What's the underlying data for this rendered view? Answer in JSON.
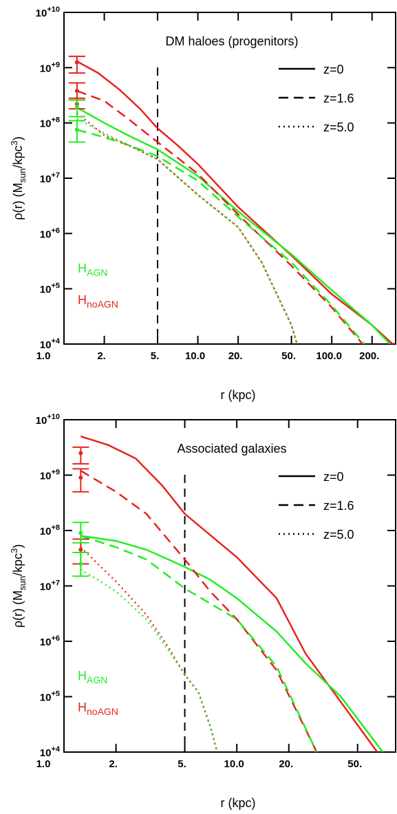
{
  "chart_data": [
    {
      "type": "line",
      "title": "DM haloes (progenitors)",
      "xlabel": "r (kpc)",
      "ylabel_parts": [
        "ρ(r) (M",
        "sun",
        "/kpc",
        "3",
        ")"
      ],
      "log_x": true,
      "log_y": true,
      "xlim": [
        1,
        300
      ],
      "ylim": [
        10000.0,
        10000000000.0
      ],
      "xticks": [
        {
          "value": 1,
          "label": "1.0"
        },
        {
          "value": 2,
          "label": "2."
        },
        {
          "value": 5,
          "label": "5."
        },
        {
          "value": 10,
          "label": "10.0"
        },
        {
          "value": 20,
          "label": "20."
        },
        {
          "value": 50,
          "label": "50."
        },
        {
          "value": 100,
          "label": "100.0"
        },
        {
          "value": 200,
          "label": "200."
        }
      ],
      "yticks": [
        {
          "value": 10000.0,
          "label": "10",
          "exponent": "+4"
        },
        {
          "value": 100000.0,
          "label": "10",
          "exponent": "+5"
        },
        {
          "value": 1000000.0,
          "label": "10",
          "exponent": "+6"
        },
        {
          "value": 10000000.0,
          "label": "10",
          "exponent": "+7"
        },
        {
          "value": 100000000.0,
          "label": "10",
          "exponent": "+8"
        },
        {
          "value": 1000000000.0,
          "label": "10",
          "exponent": "+9"
        },
        {
          "value": 10000000000.0,
          "label": "10",
          "exponent": "+10"
        }
      ],
      "vline": 5,
      "legend": "upper right",
      "styles": [
        {
          "label": "z=0",
          "dash": "solid"
        },
        {
          "label": "z=1.6",
          "dash": "dashed"
        },
        {
          "label": "z=5.0",
          "dash": "dotted"
        }
      ],
      "groups": [
        {
          "label": "H",
          "sub": "AGN",
          "color": "#22ee22"
        },
        {
          "label": "H",
          "sub": "noAGN",
          "color": "#e8231e"
        }
      ],
      "series": [
        {
          "group": 1,
          "style": 0,
          "x": [
            1.25,
            1.8,
            2.6,
            3.7,
            5,
            7,
            10,
            20,
            50,
            100,
            200,
            285
          ],
          "values": [
            1300000000.0,
            800000000.0,
            400000000.0,
            180000000.0,
            80000000.0,
            40000000.0,
            18000000.0,
            3000000.0,
            400000.0,
            80000.0,
            22000.0,
            10000.0
          ]
        },
        {
          "group": 0,
          "style": 0,
          "x": [
            1.25,
            2,
            3,
            5,
            10,
            20,
            50,
            100,
            200,
            272
          ],
          "values": [
            190000000.0,
            100000000.0,
            60000000.0,
            33000000.0,
            11000000.0,
            2500000.0,
            420000.0,
            94000.0,
            22000.0,
            10000.0
          ]
        },
        {
          "group": 1,
          "style": 1,
          "x": [
            1.25,
            2,
            3,
            5,
            10,
            20,
            50,
            100,
            170
          ],
          "values": [
            380000000.0,
            250000000.0,
            120000000.0,
            45000000.0,
            12000000.0,
            2200000.0,
            260000.0,
            46000.0,
            10000.0
          ]
        },
        {
          "group": 0,
          "style": 1,
          "x": [
            1.25,
            2,
            3,
            5,
            10,
            20,
            50,
            100,
            175
          ],
          "values": [
            75000000.0,
            55000000.0,
            40000000.0,
            25000000.0,
            9000000.0,
            2000000.0,
            300000.0,
            50000.0,
            10000.0
          ]
        },
        {
          "group": 1,
          "style": 2,
          "x": [
            1.25,
            2,
            3,
            5,
            10,
            20,
            30,
            50,
            55
          ],
          "values": [
            150000000.0,
            60000000.0,
            40000000.0,
            22000000.0,
            5000000.0,
            1300000.0,
            300000.0,
            22000.0,
            10000.0
          ]
        },
        {
          "group": 0,
          "style": 2,
          "x": [
            1.25,
            2,
            3,
            5,
            10,
            20,
            30,
            50,
            55
          ],
          "values": [
            120000000.0,
            65000000.0,
            40000000.0,
            22000000.0,
            5000000.0,
            1300000.0,
            300000.0,
            22000.0,
            10000.0
          ]
        }
      ],
      "errors": [
        {
          "group": 1,
          "x": 1.25,
          "value": 1250000000.0,
          "low": 800000000.0,
          "high": 1600000000.0
        },
        {
          "group": 1,
          "x": 1.25,
          "value": 380000000.0,
          "low": 260000000.0,
          "high": 530000000.0
        },
        {
          "group": 1,
          "x": 1.25,
          "value": 220000000.0,
          "low": 180000000.0,
          "high": 280000000.0
        },
        {
          "group": 0,
          "x": 1.25,
          "value": 190000000.0,
          "low": 130000000.0,
          "high": 260000000.0
        },
        {
          "group": 0,
          "x": 1.25,
          "value": 75000000.0,
          "low": 45000000.0,
          "high": 110000000.0
        }
      ]
    },
    {
      "type": "line",
      "title": "Associated galaxies",
      "xlabel": "r (kpc)",
      "ylabel_parts": [
        "ρ(r) (M",
        "sun",
        "/kpc",
        "3",
        ")"
      ],
      "log_x": true,
      "log_y": true,
      "xlim": [
        1,
        83
      ],
      "ylim": [
        10000.0,
        10000000000.0
      ],
      "xticks": [
        {
          "value": 1,
          "label": "1.0"
        },
        {
          "value": 2,
          "label": "2."
        },
        {
          "value": 5,
          "label": "5."
        },
        {
          "value": 10,
          "label": "10.0"
        },
        {
          "value": 20,
          "label": "20."
        },
        {
          "value": 50,
          "label": "50."
        }
      ],
      "yticks": [
        {
          "value": 10000.0,
          "label": "10",
          "exponent": "+4"
        },
        {
          "value": 100000.0,
          "label": "10",
          "exponent": "+5"
        },
        {
          "value": 1000000.0,
          "label": "10",
          "exponent": "+6"
        },
        {
          "value": 10000000.0,
          "label": "10",
          "exponent": "+7"
        },
        {
          "value": 100000000.0,
          "label": "10",
          "exponent": "+8"
        },
        {
          "value": 1000000000.0,
          "label": "10",
          "exponent": "+9"
        },
        {
          "value": 10000000000.0,
          "label": "10",
          "exponent": "+10"
        }
      ],
      "vline": 5,
      "legend": "upper right",
      "styles": [
        {
          "label": "z=0",
          "dash": "solid"
        },
        {
          "label": "z=1.6",
          "dash": "dashed"
        },
        {
          "label": "z=5.0",
          "dash": "dotted"
        }
      ],
      "groups": [
        {
          "label": "H",
          "sub": "AGN",
          "color": "#22ee22"
        },
        {
          "label": "H",
          "sub": "noAGN",
          "color": "#e8231e"
        }
      ],
      "series": [
        {
          "group": 1,
          "style": 0,
          "x": [
            1.25,
            1.8,
            2.6,
            3.7,
            5,
            10,
            17,
            25,
            40,
            65
          ],
          "values": [
            5000000000.0,
            3500000000.0,
            2000000000.0,
            650000000.0,
            200000000.0,
            33000000.0,
            6000000.0,
            600000.0,
            80000.0,
            10000.0
          ]
        },
        {
          "group": 0,
          "style": 0,
          "x": [
            1.25,
            2,
            3,
            5,
            7,
            10,
            17,
            25,
            40,
            70
          ],
          "values": [
            80000000.0,
            65000000.0,
            45000000.0,
            22000000.0,
            13000000.0,
            6000000.0,
            1500000.0,
            400000.0,
            100000.0,
            10000.0
          ]
        },
        {
          "group": 1,
          "style": 1,
          "x": [
            1.25,
            2,
            3,
            5,
            7,
            10,
            17,
            29
          ],
          "values": [
            1200000000.0,
            500000000.0,
            200000000.0,
            30000000.0,
            8000000.0,
            2500000.0,
            300000.0,
            10000.0
          ]
        },
        {
          "group": 0,
          "style": 1,
          "x": [
            1.25,
            2,
            3,
            5,
            10,
            17,
            29
          ],
          "values": [
            80000000.0,
            50000000.0,
            30000000.0,
            9000000.0,
            2500000.0,
            350000.0,
            10000.0
          ]
        },
        {
          "group": 1,
          "style": 2,
          "x": [
            1.25,
            2,
            3,
            4,
            5,
            6,
            7,
            7.7
          ],
          "values": [
            50000000.0,
            12000000.0,
            3000000.0,
            800000.0,
            250000.0,
            120000.0,
            30000.0,
            10000.0
          ]
        },
        {
          "group": 0,
          "style": 2,
          "x": [
            1.25,
            2,
            3,
            4,
            5,
            6,
            7,
            7.7
          ],
          "values": [
            20000000.0,
            8000000.0,
            2500000.0,
            700000.0,
            250000.0,
            120000.0,
            30000.0,
            10000.0
          ]
        }
      ],
      "errors": [
        {
          "group": 1,
          "x": 1.25,
          "value": 2500000000.0,
          "low": 1600000000.0,
          "high": 3200000000.0
        },
        {
          "group": 1,
          "x": 1.25,
          "value": 900000000.0,
          "low": 500000000.0,
          "high": 1300000000.0
        },
        {
          "group": 1,
          "x": 1.25,
          "value": 45000000.0,
          "low": 25000000.0,
          "high": 70000000.0
        },
        {
          "group": 0,
          "x": 1.25,
          "value": 90000000.0,
          "low": 60000000.0,
          "high": 140000000.0
        },
        {
          "group": 0,
          "x": 1.25,
          "value": 25000000.0,
          "low": 15000000.0,
          "high": 40000000.0
        }
      ]
    }
  ]
}
